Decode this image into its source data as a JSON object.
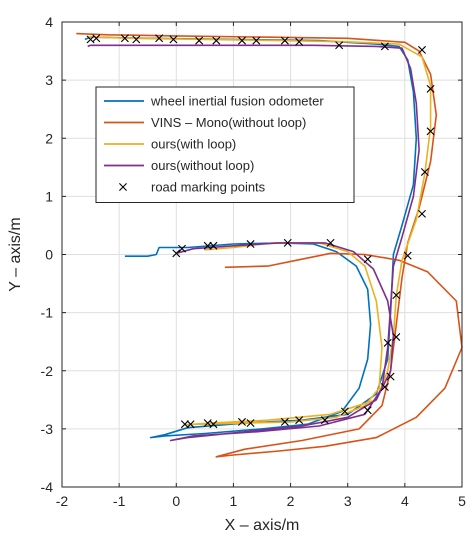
{
  "chart_data": {
    "type": "line",
    "xlabel": "X – axis/m",
    "ylabel": "Y – axis/m",
    "xlim": [
      -2,
      5
    ],
    "ylim": [
      -4,
      4
    ],
    "xticks": [
      "-2",
      "-1",
      "0",
      "1",
      "2",
      "3",
      "4",
      "5"
    ],
    "yticks": [
      "-4",
      "-3",
      "-2",
      "-1",
      "0",
      "1",
      "2",
      "3",
      "4"
    ],
    "grid": true,
    "legend_position": "top-left",
    "series": [
      {
        "name": "wheel inertial fusion odometer",
        "color": "#0072BD",
        "points": [
          [
            -0.9,
            -0.03
          ],
          [
            -0.5,
            -0.03
          ],
          [
            -0.35,
            0.0
          ],
          [
            -0.3,
            0.12
          ],
          [
            0.2,
            0.12
          ],
          [
            1.0,
            0.18
          ],
          [
            1.8,
            0.2
          ],
          [
            2.4,
            0.18
          ],
          [
            2.8,
            0.05
          ],
          [
            3.15,
            -0.2
          ],
          [
            3.35,
            -0.6
          ],
          [
            3.4,
            -1.2
          ],
          [
            3.35,
            -1.8
          ],
          [
            3.2,
            -2.3
          ],
          [
            2.9,
            -2.7
          ],
          [
            2.3,
            -2.92
          ],
          [
            1.5,
            -3.0
          ],
          [
            0.5,
            -3.08
          ],
          [
            -0.2,
            -3.12
          ],
          [
            -0.45,
            -3.15
          ],
          [
            -0.2,
            -3.1
          ],
          [
            0.2,
            -2.98
          ],
          [
            1.2,
            -2.9
          ],
          [
            2.2,
            -2.85
          ],
          [
            3.0,
            -2.75
          ],
          [
            3.5,
            -2.4
          ],
          [
            3.7,
            -1.8
          ],
          [
            3.75,
            -1.0
          ],
          [
            3.8,
            0.0
          ],
          [
            3.95,
            0.5
          ],
          [
            4.15,
            1.2
          ],
          [
            4.2,
            2.0
          ],
          [
            4.15,
            2.8
          ],
          [
            4.05,
            3.35
          ],
          [
            3.9,
            3.58
          ],
          [
            3.5,
            3.62
          ],
          [
            2.5,
            3.68
          ],
          [
            1.0,
            3.7
          ],
          [
            -0.5,
            3.72
          ],
          [
            -1.5,
            3.74
          ],
          [
            -1.6,
            3.7
          ]
        ]
      },
      {
        "name": "VINS – Mono(without loop)",
        "color": "#D95319",
        "points": [
          [
            0.85,
            -0.22
          ],
          [
            1.6,
            -0.2
          ],
          [
            2.1,
            -0.1
          ],
          [
            2.7,
            0.02
          ],
          [
            3.3,
            0.0
          ],
          [
            3.9,
            -0.1
          ],
          [
            4.4,
            -0.3
          ],
          [
            4.9,
            -0.8
          ],
          [
            5.0,
            -1.6
          ],
          [
            4.7,
            -2.3
          ],
          [
            4.2,
            -2.8
          ],
          [
            3.5,
            -3.15
          ],
          [
            2.6,
            -3.3
          ],
          [
            1.8,
            -3.38
          ],
          [
            1.0,
            -3.45
          ],
          [
            0.7,
            -3.48
          ],
          [
            1.2,
            -3.35
          ],
          [
            2.2,
            -3.2
          ],
          [
            3.2,
            -3.0
          ],
          [
            3.6,
            -2.6
          ],
          [
            3.75,
            -2.0
          ],
          [
            3.85,
            -1.2
          ],
          [
            3.95,
            -0.4
          ],
          [
            4.05,
            0.2
          ],
          [
            4.25,
            0.8
          ],
          [
            4.45,
            1.6
          ],
          [
            4.55,
            2.4
          ],
          [
            4.45,
            3.1
          ],
          [
            4.25,
            3.5
          ],
          [
            4.0,
            3.65
          ],
          [
            3.0,
            3.72
          ],
          [
            1.5,
            3.74
          ],
          [
            0.0,
            3.76
          ],
          [
            -1.2,
            3.78
          ],
          [
            -1.75,
            3.8
          ]
        ]
      },
      {
        "name": "ours(with loop)",
        "color": "#EDB120",
        "points": [
          [
            0.5,
            0.08
          ],
          [
            1.0,
            0.12
          ],
          [
            1.7,
            0.2
          ],
          [
            2.5,
            0.2
          ],
          [
            3.0,
            0.05
          ],
          [
            3.3,
            -0.2
          ],
          [
            3.5,
            -0.8
          ],
          [
            3.6,
            -1.6
          ],
          [
            3.55,
            -2.3
          ],
          [
            3.3,
            -2.6
          ],
          [
            2.8,
            -2.8
          ],
          [
            2.0,
            -2.88
          ],
          [
            1.2,
            -2.9
          ],
          [
            0.4,
            -2.92
          ],
          [
            0.15,
            -2.93
          ],
          [
            0.6,
            -2.9
          ],
          [
            1.6,
            -2.85
          ],
          [
            2.7,
            -2.75
          ],
          [
            3.5,
            -2.5
          ],
          [
            3.7,
            -2.0
          ],
          [
            3.8,
            -1.4
          ],
          [
            3.85,
            -0.7
          ],
          [
            3.95,
            -0.1
          ],
          [
            4.2,
            0.6
          ],
          [
            4.35,
            1.4
          ],
          [
            4.45,
            2.2
          ],
          [
            4.45,
            2.9
          ],
          [
            4.3,
            3.4
          ],
          [
            3.9,
            3.62
          ],
          [
            3.0,
            3.66
          ],
          [
            1.8,
            3.68
          ],
          [
            0.5,
            3.7
          ],
          [
            -0.8,
            3.72
          ],
          [
            -1.55,
            3.74
          ]
        ]
      },
      {
        "name": "ours(without loop)",
        "color": "#7E2F8E",
        "points": [
          [
            0.0,
            0.02
          ],
          [
            0.3,
            0.1
          ],
          [
            1.0,
            0.15
          ],
          [
            1.8,
            0.2
          ],
          [
            2.6,
            0.2
          ],
          [
            3.1,
            0.05
          ],
          [
            3.45,
            -0.25
          ],
          [
            3.7,
            -0.8
          ],
          [
            3.8,
            -1.4
          ],
          [
            3.75,
            -2.0
          ],
          [
            3.5,
            -2.5
          ],
          [
            3.0,
            -2.8
          ],
          [
            2.2,
            -2.95
          ],
          [
            1.2,
            -3.05
          ],
          [
            0.2,
            -3.15
          ],
          [
            -0.1,
            -3.2
          ],
          [
            0.3,
            -3.12
          ],
          [
            1.4,
            -3.05
          ],
          [
            2.5,
            -2.95
          ],
          [
            3.3,
            -2.75
          ],
          [
            3.6,
            -2.3
          ],
          [
            3.7,
            -1.6
          ],
          [
            3.75,
            -0.9
          ],
          [
            3.8,
            -0.2
          ],
          [
            3.95,
            0.3
          ],
          [
            4.15,
            1.0
          ],
          [
            4.25,
            1.8
          ],
          [
            4.2,
            2.6
          ],
          [
            4.1,
            3.2
          ],
          [
            3.95,
            3.55
          ],
          [
            3.5,
            3.58
          ],
          [
            2.4,
            3.6
          ],
          [
            1.0,
            3.6
          ],
          [
            -0.4,
            3.6
          ],
          [
            -1.5,
            3.6
          ],
          [
            -1.55,
            3.58
          ]
        ]
      },
      {
        "name": "road marking points",
        "color": "#000000",
        "marker": "x",
        "points": [
          [
            -1.5,
            3.7
          ],
          [
            -1.4,
            3.72
          ],
          [
            -0.9,
            3.72
          ],
          [
            -0.7,
            3.7
          ],
          [
            -0.3,
            3.72
          ],
          [
            -0.05,
            3.7
          ],
          [
            0.4,
            3.68
          ],
          [
            0.7,
            3.68
          ],
          [
            1.15,
            3.68
          ],
          [
            1.4,
            3.68
          ],
          [
            1.9,
            3.68
          ],
          [
            2.15,
            3.66
          ],
          [
            2.85,
            3.6
          ],
          [
            3.65,
            3.58
          ],
          [
            4.3,
            3.52
          ],
          [
            4.45,
            2.85
          ],
          [
            4.45,
            2.12
          ],
          [
            4.35,
            1.42
          ],
          [
            4.3,
            0.7
          ],
          [
            4.05,
            -0.02
          ],
          [
            3.85,
            -0.7
          ],
          [
            3.85,
            -1.42
          ],
          [
            3.7,
            -1.52
          ],
          [
            3.75,
            -2.1
          ],
          [
            3.65,
            -2.28
          ],
          [
            3.35,
            -2.68
          ],
          [
            2.95,
            -2.7
          ],
          [
            2.6,
            -2.85
          ],
          [
            2.15,
            -2.85
          ],
          [
            1.9,
            -2.88
          ],
          [
            1.3,
            -2.9
          ],
          [
            1.15,
            -2.88
          ],
          [
            0.65,
            -2.92
          ],
          [
            0.55,
            -2.9
          ],
          [
            0.25,
            -2.92
          ],
          [
            0.15,
            -2.92
          ],
          [
            0.0,
            0.02
          ],
          [
            0.1,
            0.1
          ],
          [
            0.55,
            0.15
          ],
          [
            0.65,
            0.15
          ],
          [
            1.3,
            0.18
          ],
          [
            1.95,
            0.2
          ],
          [
            2.7,
            0.2
          ],
          [
            3.35,
            -0.08
          ]
        ]
      }
    ]
  }
}
